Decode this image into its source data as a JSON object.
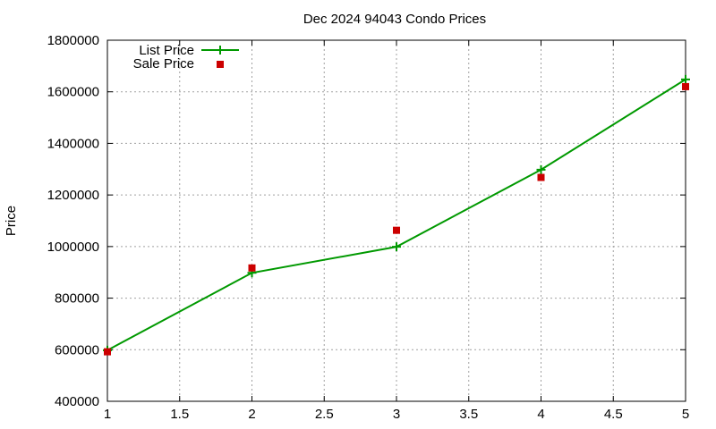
{
  "chart_data": {
    "type": "line",
    "title": "Dec 2024 94043 Condo Prices",
    "xlabel": "",
    "ylabel": "Price",
    "xlim": [
      1,
      5
    ],
    "ylim": [
      400000,
      1800000
    ],
    "x_ticks": [
      "1",
      "1.5",
      "2",
      "2.5",
      "3",
      "3.5",
      "4",
      "4.5",
      "5"
    ],
    "y_ticks": [
      "400000",
      "600000",
      "800000",
      "1000000",
      "1200000",
      "1400000",
      "1600000",
      "1800000"
    ],
    "grid": true,
    "legend_position": "top-left",
    "series": [
      {
        "name": "List Price",
        "style": "lines+crosses",
        "color": "#009900",
        "x": [
          1,
          2,
          3,
          4,
          5
        ],
        "y": [
          598000,
          898000,
          999000,
          1298000,
          1648000
        ]
      },
      {
        "name": "Sale Price",
        "style": "squares",
        "color": "#cc0000",
        "x": [
          1,
          2,
          3,
          4,
          5
        ],
        "y": [
          592000,
          917000,
          1063000,
          1268000,
          1620000
        ]
      }
    ]
  }
}
